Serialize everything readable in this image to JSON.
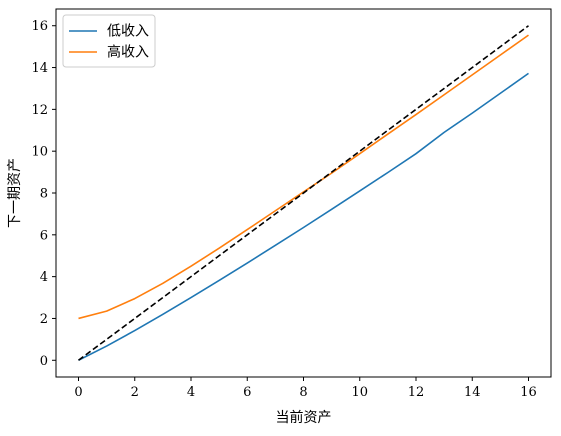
{
  "chart_data": {
    "type": "line",
    "title": "",
    "xlabel": "当前资产",
    "ylabel": "下一期资产",
    "xlim": [
      -0.8,
      16.8
    ],
    "ylim": [
      -0.8,
      16.8
    ],
    "xticks": [
      0,
      2,
      4,
      6,
      8,
      10,
      12,
      14,
      16
    ],
    "yticks": [
      0,
      2,
      4,
      6,
      8,
      10,
      12,
      14,
      16
    ],
    "grid": false,
    "legend_position": "upper-left",
    "series": [
      {
        "name": "低收入",
        "color": "#1f77b4",
        "style": "solid",
        "x": [
          0,
          1,
          2,
          3,
          4,
          5,
          6,
          7,
          8,
          9,
          10,
          11,
          12,
          13,
          14,
          15,
          16
        ],
        "y": [
          0,
          0.68,
          1.42,
          2.2,
          3.0,
          3.82,
          4.65,
          5.5,
          6.35,
          7.22,
          8.1,
          8.98,
          9.88,
          10.9,
          11.82,
          12.77,
          13.72
        ]
      },
      {
        "name": "高收入",
        "color": "#ff7f0e",
        "style": "solid",
        "x": [
          0,
          1,
          2,
          3,
          4,
          5,
          6,
          7,
          8,
          9,
          10,
          11,
          12,
          13,
          14,
          15,
          16
        ],
        "y": [
          2.0,
          2.35,
          2.95,
          3.68,
          4.5,
          5.36,
          6.25,
          7.15,
          8.05,
          8.95,
          9.88,
          10.82,
          11.75,
          12.7,
          13.65,
          14.6,
          15.55
        ]
      },
      {
        "color": "#000000",
        "style": "dashed",
        "x": [
          0,
          16
        ],
        "y": [
          0,
          16
        ]
      }
    ]
  }
}
